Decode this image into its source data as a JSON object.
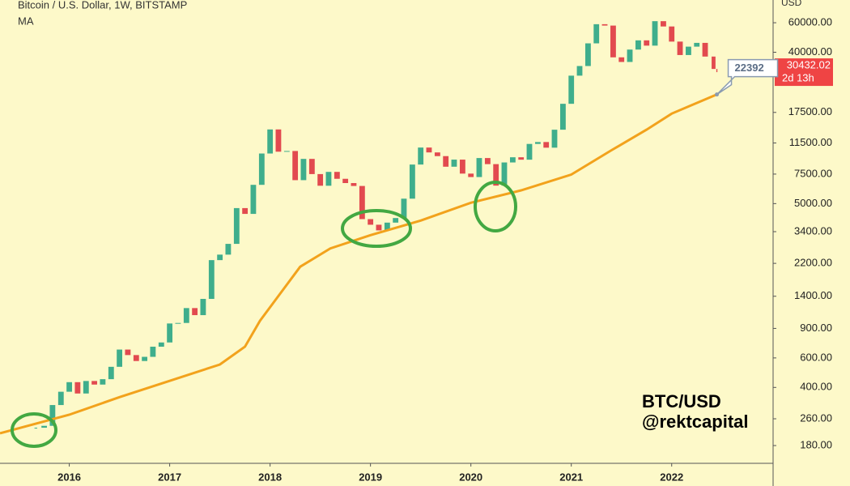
{
  "chart_data": {
    "type": "candlestick",
    "title": "Bitcoin / U.S. Dollar, 1W, BITSTAMP",
    "indicator": "MA",
    "y_axis_label": "USD",
    "watermark": [
      "BTC/USD",
      "@rektcapital"
    ],
    "countdown": "2d 13h",
    "log_scale": true,
    "xlim": [
      2015.31,
      2023.01
    ],
    "ylim": [
      141,
      82000
    ],
    "xticks": [
      2016,
      2017,
      2018,
      2019,
      2020,
      2021,
      2022
    ],
    "yticks": [
      {
        "value": 180,
        "label": "180.00"
      },
      {
        "value": 260,
        "label": "260.00"
      },
      {
        "value": 400,
        "label": "400.00"
      },
      {
        "value": 600,
        "label": "600.00"
      },
      {
        "value": 900,
        "label": "900.00"
      },
      {
        "value": 1400,
        "label": "1400.00"
      },
      {
        "value": 2200,
        "label": "2200.00"
      },
      {
        "value": 3400,
        "label": "3400.00"
      },
      {
        "value": 5000,
        "label": "5000.00"
      },
      {
        "value": 7500,
        "label": "7500.00"
      },
      {
        "value": 11500,
        "label": "11500.00"
      },
      {
        "value": 17500,
        "label": "17500.00"
      },
      {
        "value": 40000,
        "label": "40000.00"
      },
      {
        "value": 60000,
        "label": "60000.00"
      }
    ],
    "up_color": "#3fae8c",
    "down_color": "#e24a4f",
    "series": [
      {
        "name": "BTCUSD",
        "kind": "candles",
        "x": [
          2015.667,
          2015.75,
          2015.833,
          2015.917,
          2016.0,
          2016.083,
          2016.167,
          2016.25,
          2016.333,
          2016.417,
          2016.5,
          2016.583,
          2016.667,
          2016.75,
          2016.833,
          2016.917,
          2017.0,
          2017.083,
          2017.167,
          2017.25,
          2017.333,
          2017.417,
          2017.5,
          2017.583,
          2017.667,
          2017.75,
          2017.833,
          2017.917,
          2018.0,
          2018.083,
          2018.167,
          2018.25,
          2018.333,
          2018.417,
          2018.5,
          2018.583,
          2018.667,
          2018.75,
          2018.833,
          2018.917,
          2019.0,
          2019.083,
          2019.167,
          2019.25,
          2019.333,
          2019.417,
          2019.5,
          2019.583,
          2019.667,
          2019.75,
          2019.833,
          2019.917,
          2020.0,
          2020.083,
          2020.167,
          2020.25,
          2020.333,
          2020.417,
          2020.5,
          2020.583,
          2020.667,
          2020.75,
          2020.833,
          2020.917,
          2021.0,
          2021.083,
          2021.167,
          2021.25,
          2021.333,
          2021.417,
          2021.5,
          2021.583,
          2021.667,
          2021.75,
          2021.833,
          2021.917,
          2022.0,
          2022.083,
          2022.167,
          2022.25,
          2022.333,
          2022.417,
          2022.45
        ],
        "values": [
          230,
          236,
          314,
          377,
          430,
          368,
          437,
          416,
          448,
          531,
          673,
          624,
          575,
          609,
          700,
          742,
          963,
          970,
          1190,
          1080,
          1350,
          2300,
          2480,
          2875,
          4700,
          4340,
          6470,
          9950,
          13850,
          10200,
          10300,
          6900,
          9240,
          7500,
          6390,
          7730,
          7030,
          6630,
          6370,
          4040,
          3740,
          3460,
          3850,
          4100,
          5350,
          8550,
          10800,
          10100,
          9600,
          8300,
          9150,
          7550,
          7200,
          9350,
          8600,
          6400,
          8800,
          9450,
          9140,
          11350,
          11650,
          10780,
          13800,
          19700,
          29000,
          33100,
          45200,
          58800,
          57700,
          37300,
          35000,
          41500,
          47100,
          43800,
          61300,
          57000,
          46300,
          38500,
          43200,
          45500,
          37700,
          31800,
          30432.02
        ]
      },
      {
        "name": "MA",
        "kind": "line",
        "color": "#f2a21c",
        "x": [
          2015.31,
          2016.0,
          2016.5,
          2017.0,
          2017.5,
          2017.75,
          2017.9,
          2018.1,
          2018.3,
          2018.6,
          2019.0,
          2019.5,
          2020.0,
          2020.5,
          2021.0,
          2021.4,
          2021.75,
          2022.0,
          2022.45
        ],
        "values": [
          213,
          275,
          350,
          438,
          548,
          700,
          1000,
          1450,
          2100,
          2700,
          3240,
          3960,
          5060,
          6000,
          7450,
          10400,
          13800,
          17200,
          22392
        ]
      }
    ]
  }
}
